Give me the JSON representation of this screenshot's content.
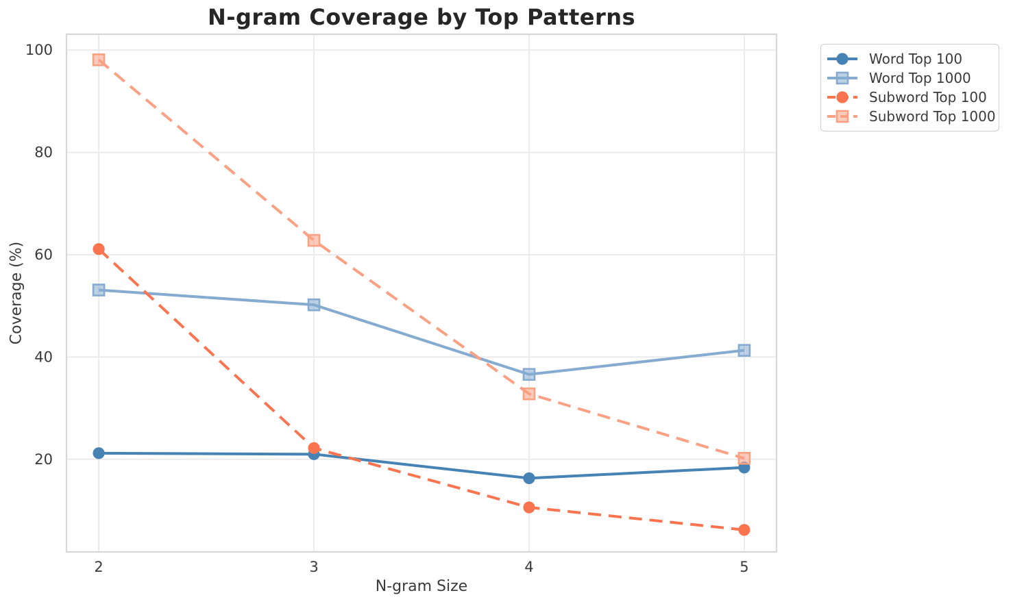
{
  "chart_data": {
    "type": "line",
    "title": "N-gram Coverage by Top Patterns",
    "xlabel": "N-gram Size",
    "ylabel": "Coverage (%)",
    "x": [
      2,
      3,
      4,
      5
    ],
    "x_tick_labels": [
      "2",
      "3",
      "4",
      "5"
    ],
    "y_ticks": [
      20,
      40,
      60,
      80,
      100
    ],
    "y_tick_labels": [
      "20",
      "40",
      "60",
      "80",
      "100"
    ],
    "xlim": [
      1.85,
      5.15
    ],
    "ylim": [
      1.9,
      103.1
    ],
    "grid": true,
    "legend_position": "outside-upper-right",
    "series": [
      {
        "name": "Word Top 100",
        "values": [
          21.2,
          21.0,
          16.3,
          18.4
        ],
        "color": "#4682B4",
        "line_style": "solid",
        "marker": "circle"
      },
      {
        "name": "Word Top 1000",
        "values": [
          53.1,
          50.2,
          36.6,
          41.3
        ],
        "color": "#85ABD0",
        "line_style": "solid",
        "marker": "square"
      },
      {
        "name": "Subword Top 100",
        "values": [
          61.1,
          22.2,
          10.6,
          6.2
        ],
        "color": "#FA7450",
        "line_style": "dashed",
        "marker": "circle"
      },
      {
        "name": "Subword Top 1000",
        "values": [
          98.1,
          62.8,
          32.8,
          20.2
        ],
        "color": "#FBA183",
        "line_style": "dashed",
        "marker": "square"
      }
    ],
    "style": {
      "grid_color": "#EBEBEB",
      "spine_color": "#D7D7D7",
      "tick_label_color": "#3A3A3A",
      "title_color": "#262626"
    }
  }
}
